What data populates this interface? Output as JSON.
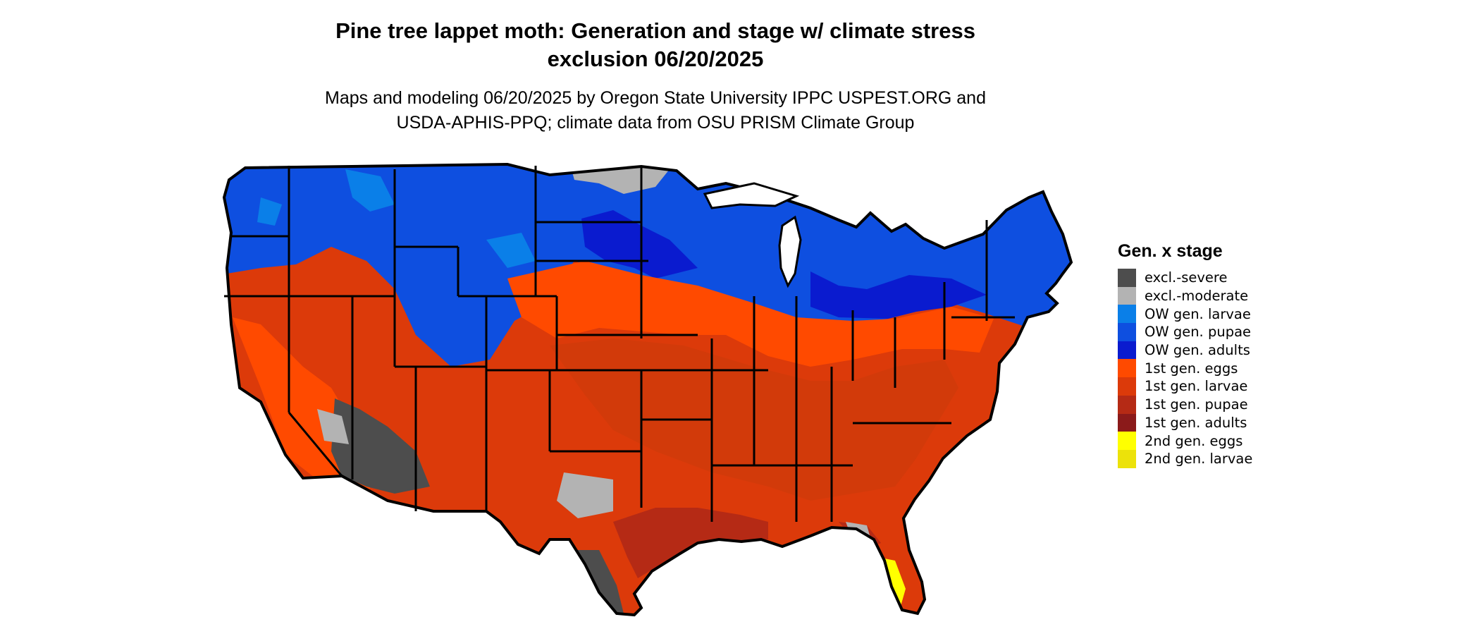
{
  "title_line1": "Pine tree lappet moth: Generation and stage w/ climate stress",
  "title_line2": "exclusion 06/20/2025",
  "subtitle_line1": "Maps and modeling 06/20/2025 by Oregon State University IPPC USPEST.ORG and",
  "subtitle_line2": "USDA-APHIS-PPQ; climate data from OSU PRISM Climate Group",
  "legend": {
    "title": "Gen. x stage",
    "items": [
      {
        "label": "excl.-severe",
        "color": "#4d4d4d"
      },
      {
        "label": "excl.-moderate",
        "color": "#b3b3b3"
      },
      {
        "label": "OW gen. larvae",
        "color": "#0a7fe8"
      },
      {
        "label": "OW gen. pupae",
        "color": "#0e4fe0"
      },
      {
        "label": "OW gen. adults",
        "color": "#0a1bcf"
      },
      {
        "label": "1st gen. eggs",
        "color": "#ff4a00"
      },
      {
        "label": "1st gen. larvae",
        "color": "#dc3a0a"
      },
      {
        "label": "1st gen. pupae",
        "color": "#b52a15"
      },
      {
        "label": "1st gen. adults",
        "color": "#8b1a1a"
      },
      {
        "label": "2nd gen. eggs",
        "color": "#ffff00"
      },
      {
        "label": "2nd gen. larvae",
        "color": "#ece20a"
      }
    ]
  }
}
